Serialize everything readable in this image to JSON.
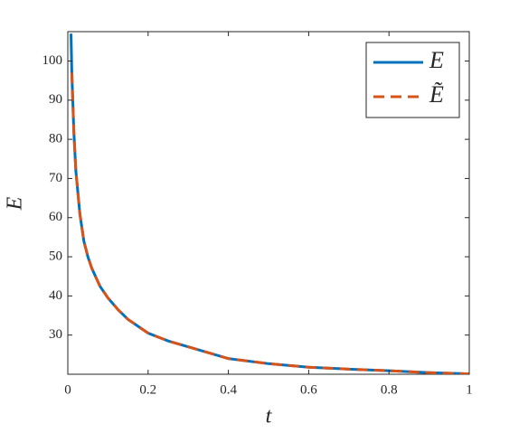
{
  "chart_data": {
    "type": "line",
    "x_label": "t",
    "y_label": "E",
    "x": [
      0.008,
      0.01,
      0.015,
      0.02,
      0.03,
      0.04,
      0.05,
      0.06,
      0.08,
      0.1,
      0.125,
      0.15,
      0.2,
      0.25,
      0.3,
      0.4,
      0.5,
      0.6,
      0.7,
      0.8,
      0.9,
      1
    ],
    "series": [
      {
        "name": "E",
        "color": "#0072bd",
        "dash": false,
        "values": [
          107,
          97,
          82,
          72,
          61,
          54,
          50,
          47,
          42.5,
          39.5,
          36.5,
          34,
          30.5,
          28.5,
          27,
          24,
          22.7,
          21.8,
          21.3,
          20.9,
          20.4,
          20.1
        ]
      },
      {
        "name": "Ẽ",
        "color": "#d95319",
        "dash": true,
        "values": [
          null,
          97,
          82,
          72,
          61,
          54,
          50,
          47,
          42.5,
          39.5,
          36.5,
          34,
          30.5,
          28.5,
          27,
          24,
          22.7,
          21.8,
          21.3,
          20.9,
          20.4,
          20.1
        ]
      }
    ],
    "xlim": [
      0,
      1
    ],
    "xticks": [
      0,
      0.2,
      0.4,
      0.6,
      0.8,
      1
    ],
    "ylim": [
      20,
      107.5
    ],
    "yticks": [
      30,
      40,
      50,
      60,
      70,
      80,
      90,
      100
    ],
    "grid": false,
    "legend": "top-right"
  }
}
